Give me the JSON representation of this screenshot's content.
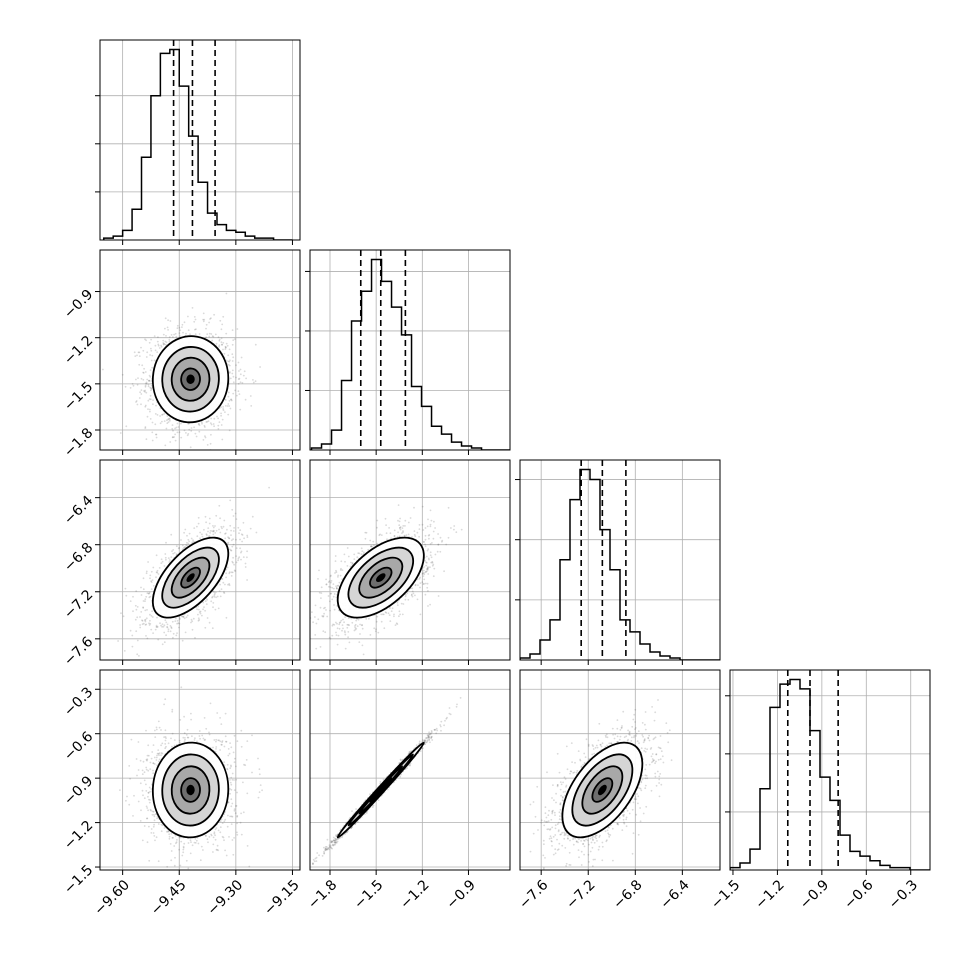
{
  "chart_data": {
    "type": "corner",
    "title": "",
    "grid": true,
    "parameters": [
      {
        "range": [
          -9.66,
          -9.13
        ],
        "ticks": [
          -9.6,
          -9.45,
          -9.3,
          -9.15
        ],
        "tick_labels": [
          "−9.60",
          "−9.45",
          "−9.30",
          "−9.15"
        ],
        "quantiles": [
          -9.465,
          -9.415,
          -9.355
        ],
        "hist_edges_start": -9.65,
        "hist_bin_width": 0.025,
        "hist_counts": [
          1,
          2,
          5,
          16,
          43,
          75,
          97,
          99,
          80,
          54,
          30,
          14,
          8,
          5,
          4,
          2,
          1,
          1,
          0,
          0
        ],
        "hist_yticks": [
          25,
          50,
          75
        ]
      },
      {
        "range": [
          -1.93,
          -0.63
        ],
        "ticks": [
          -1.8,
          -1.5,
          -1.2,
          -0.9
        ],
        "tick_labels": [
          "−1.8",
          "−1.5",
          "−1.2",
          "−0.9"
        ],
        "quantiles": [
          -1.6,
          -1.47,
          -1.31
        ],
        "hist_edges_start": -1.92,
        "hist_bin_width": 0.065,
        "hist_counts": [
          1,
          3,
          10,
          35,
          65,
          80,
          96,
          85,
          72,
          58,
          32,
          22,
          12,
          8,
          4,
          2,
          1,
          0,
          0,
          0
        ],
        "hist_yticks": [
          30,
          60,
          90
        ]
      },
      {
        "range": [
          -7.78,
          -6.08
        ],
        "ticks": [
          -7.6,
          -7.2,
          -6.8,
          -6.4
        ],
        "tick_labels": [
          "−7.6",
          "−7.2",
          "−6.8",
          "−6.4"
        ],
        "quantiles": [
          -7.26,
          -7.08,
          -6.88
        ],
        "hist_edges_start": -7.78,
        "hist_bin_width": 0.085,
        "hist_counts": [
          1,
          3,
          10,
          20,
          50,
          80,
          95,
          90,
          65,
          45,
          20,
          14,
          8,
          4,
          2,
          1,
          0,
          0,
          0,
          0
        ],
        "hist_yticks": [
          30,
          60,
          90
        ]
      },
      {
        "range": [
          -1.52,
          -0.17
        ],
        "ticks": [
          -1.5,
          -1.2,
          -0.9,
          -0.6,
          -0.3
        ],
        "tick_labels": [
          "−1.5",
          "−1.2",
          "−0.9",
          "−0.6",
          "−0.3"
        ],
        "quantiles": [
          -1.13,
          -0.98,
          -0.79
        ],
        "hist_edges_start": -1.52,
        "hist_bin_width": 0.0675,
        "hist_counts": [
          1,
          3,
          9,
          35,
          70,
          80,
          82,
          78,
          60,
          40,
          30,
          15,
          8,
          6,
          4,
          2,
          1,
          1,
          0,
          0
        ],
        "hist_yticks": [
          25,
          50,
          75
        ]
      }
    ],
    "correlations": [
      {
        "i": 1,
        "j": 0,
        "rho": 0.02
      },
      {
        "i": 2,
        "j": 0,
        "rho": 0.6
      },
      {
        "i": 2,
        "j": 1,
        "rho": 0.55
      },
      {
        "i": 3,
        "j": 0,
        "rho": 0.02
      },
      {
        "i": 3,
        "j": 1,
        "rho": 0.995
      },
      {
        "i": 3,
        "j": 2,
        "rho": 0.55
      }
    ],
    "medians": [
      -9.42,
      -1.47,
      -7.08,
      -0.98
    ],
    "sigmas": [
      0.05,
      0.14,
      0.17,
      0.16
    ],
    "colors": {
      "points": "#555555",
      "hist": "#000000",
      "grid": "#b0b0b0"
    }
  }
}
